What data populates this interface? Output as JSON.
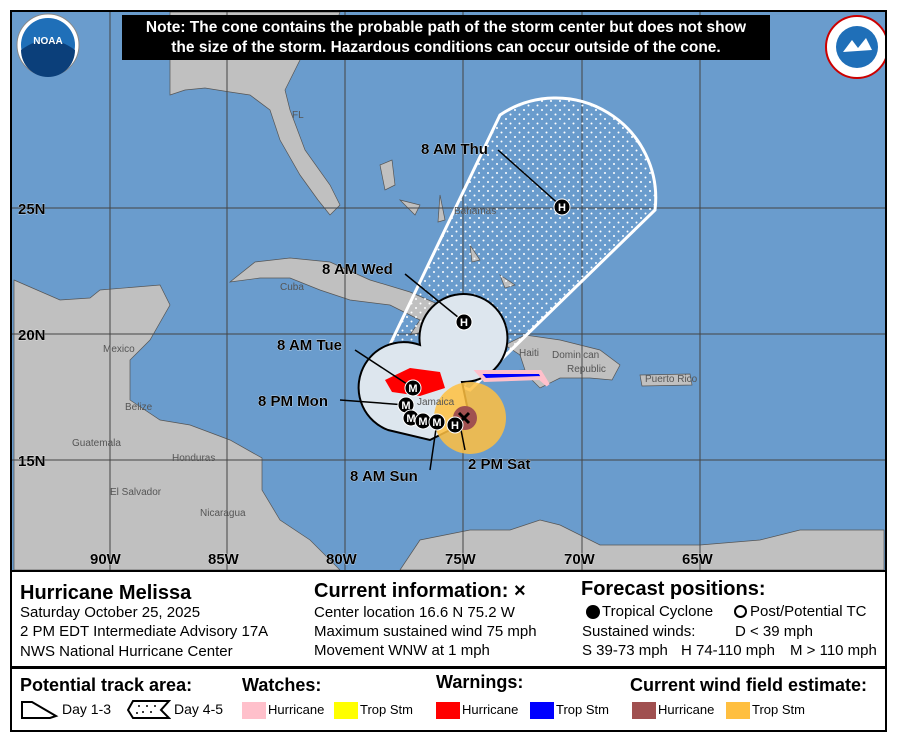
{
  "note": {
    "line1": "Note: The cone contains the probable path of the storm center but does not show",
    "line2": "the size of the storm. Hazardous conditions can occur outside of the cone."
  },
  "logos": {
    "left": "NOAA",
    "right": "NATIONAL WEATHER SERVICE"
  },
  "map": {
    "lon_labels": [
      "90W",
      "85W",
      "80W",
      "75W",
      "70W",
      "65W"
    ],
    "lat_labels": [
      "25N",
      "20N",
      "15N"
    ],
    "place_labels": [
      "FL",
      "Bahamas",
      "Cuba",
      "Mexico",
      "Belize",
      "Guatemala",
      "Honduras",
      "El Salvador",
      "Nicaragua",
      "Jamaica",
      "Haiti",
      "Dominican",
      "Republic",
      "Puerto Rico"
    ],
    "forecast_labels": [
      "8 AM Thu",
      "8 AM Wed",
      "8 AM Tue",
      "8 PM Mon",
      "8 AM Sun",
      "2 PM Sat"
    ],
    "track_markers": [
      "H",
      "H",
      "M",
      "M",
      "M",
      "M",
      "M",
      "H"
    ],
    "colors": {
      "ocean": "#6a9ccd",
      "land": "#c0c0c0",
      "hurricane_warning": "#ff0000",
      "tropstm_warning": "#0000ff",
      "hurricane_watch": "#ffc0cb",
      "tropstm_watch": "#ffff00",
      "hurricane_wind": "#a05050",
      "tropstm_wind": "#ffbf40"
    }
  },
  "info": {
    "storm_name": "Hurricane Melissa",
    "date": "Saturday October 25, 2025",
    "advisory": "2 PM EDT Intermediate Advisory 17A",
    "center": "NWS National Hurricane Center",
    "current_title": "Current information: ×",
    "location": "Center location 16.6 N 75.2 W",
    "max_wind": "Maximum sustained wind 75 mph",
    "movement": "Movement WNW at 1 mph",
    "forecast_title": "Forecast positions:",
    "tropical_cyclone": "Tropical Cyclone",
    "post_tc": "Post/Potential TC",
    "sustained": "Sustained winds:",
    "d": "D < 39 mph",
    "s": "S 39-73 mph",
    "h": "H 74-110 mph",
    "m": "M > 110 mph"
  },
  "legend": {
    "track_title": "Potential track area:",
    "day13": "Day 1-3",
    "day45": "Day 4-5",
    "watches_title": "Watches:",
    "watch_hurricane": "Hurricane",
    "watch_tropstm": "Trop Stm",
    "warnings_title": "Warnings:",
    "warn_hurricane": "Hurricane",
    "warn_tropstm": "Trop Stm",
    "wind_title": "Current wind field estimate:",
    "wind_hurricane": "Hurricane",
    "wind_tropstm": "Trop Stm"
  }
}
